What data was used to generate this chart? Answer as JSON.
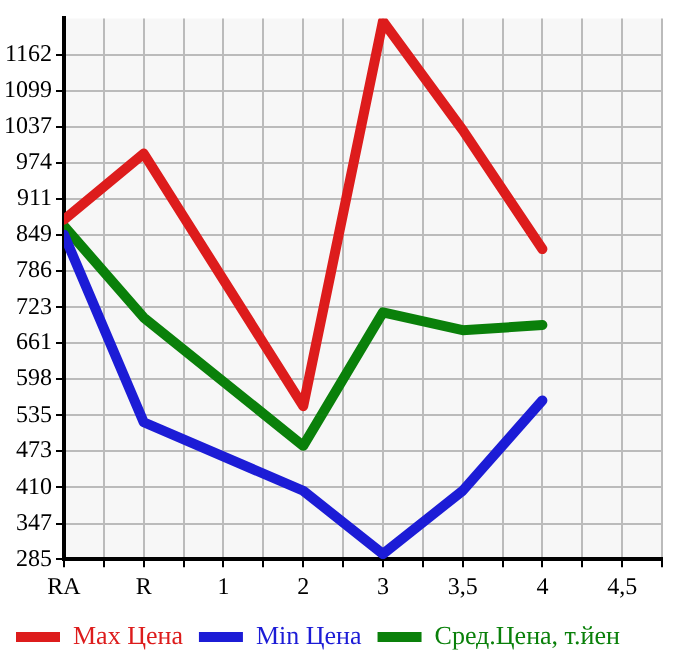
{
  "chart_data": {
    "type": "line",
    "categories": [
      "RA",
      "R",
      "1",
      "2",
      "3",
      "3,5",
      "4",
      "4,5"
    ],
    "series": [
      {
        "name": "Max Цена",
        "color": "#dd1c1c",
        "values": [
          875,
          990,
          null,
          551,
          1220,
          1031,
          824,
          null
        ]
      },
      {
        "name": "Min Цена",
        "color": "#1c1cd6",
        "values": [
          849,
          523,
          null,
          404,
          294,
          404,
          561,
          null
        ]
      },
      {
        "name": "Сред.Цена, т.йен",
        "color": "#0a800a",
        "values": [
          864,
          705,
          null,
          482,
          714,
          683,
          692,
          null
        ]
      }
    ],
    "ylim": [
      285,
      1225
    ],
    "yticks": [
      285,
      347,
      410,
      473,
      535,
      598,
      661,
      723,
      786,
      849,
      911,
      974,
      1037,
      1099,
      1162
    ],
    "grid": true,
    "legend": "bottom",
    "marker": "none",
    "line_style": "solid"
  }
}
